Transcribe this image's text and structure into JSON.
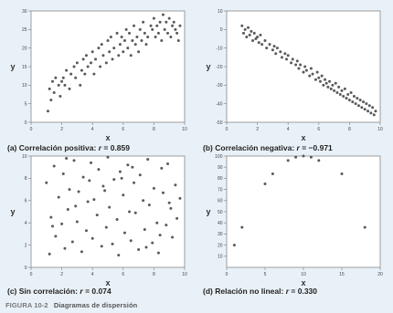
{
  "figure": {
    "number": "FIGURA 10-2",
    "title": "Diagramas de dispersión"
  },
  "panels": [
    {
      "letter": "(a)",
      "label": "Correlación positiva:",
      "r_symbol": "r",
      "r_value": "= 0.859"
    },
    {
      "letter": "(b)",
      "label": "Correlación negativa:",
      "r_symbol": "r",
      "r_value": "= −0.971"
    },
    {
      "letter": "(c)",
      "label": "Sin correlación:",
      "r_symbol": "r",
      "r_value": "= 0.074"
    },
    {
      "letter": "(d)",
      "label": "Relación no lineal:",
      "r_symbol": "r",
      "r_value": "= 0.330"
    }
  ],
  "colors": {
    "point": "#5a5a5a",
    "axis": "#888888",
    "background": "#e9f1f8",
    "plot_bg": "#ffffff"
  },
  "chart_data": [
    {
      "type": "scatter",
      "title": "(a) Correlación positiva: r = 0.859",
      "xlabel": "x",
      "ylabel": "y",
      "xlim": [
        0,
        10
      ],
      "ylim": [
        0,
        30
      ],
      "xticks": [
        0,
        2,
        4,
        6,
        8,
        10
      ],
      "yticks": [
        0,
        5,
        10,
        15,
        20,
        25,
        30
      ],
      "x": [
        1.1,
        1.2,
        1.3,
        1.4,
        1.5,
        1.6,
        1.8,
        1.9,
        2.0,
        2.1,
        2.2,
        2.3,
        2.5,
        2.6,
        2.8,
        2.9,
        3.0,
        3.2,
        3.3,
        3.4,
        3.5,
        3.6,
        3.7,
        3.9,
        4.0,
        4.1,
        4.2,
        4.4,
        4.5,
        4.6,
        4.7,
        4.9,
        5.0,
        5.1,
        5.2,
        5.3,
        5.4,
        5.6,
        5.7,
        5.8,
        5.9,
        6.0,
        6.1,
        6.2,
        6.3,
        6.4,
        6.5,
        6.6,
        6.7,
        6.8,
        6.9,
        7.0,
        7.1,
        7.2,
        7.3,
        7.4,
        7.5,
        7.6,
        7.8,
        7.9,
        8.0,
        8.1,
        8.2,
        8.3,
        8.4,
        8.5,
        8.6,
        8.7,
        8.8,
        8.9,
        9.0,
        9.1,
        9.2,
        9.3,
        9.4,
        9.5,
        9.6,
        9.7
      ],
      "y": [
        3,
        9,
        6,
        11,
        8,
        12,
        10,
        7,
        11,
        12,
        10,
        14,
        9,
        13,
        15,
        12,
        16,
        10,
        14,
        17,
        13,
        18,
        15,
        16,
        19,
        13,
        17,
        20,
        15,
        21,
        18,
        16,
        22,
        19,
        23,
        17,
        20,
        24,
        18,
        21,
        23,
        19,
        22,
        25,
        20,
        24,
        18,
        22,
        26,
        21,
        23,
        19,
        25,
        22,
        27,
        24,
        21,
        23,
        26,
        25,
        28,
        23,
        26,
        24,
        27,
        22,
        29,
        25,
        27,
        24,
        28,
        23,
        26,
        27,
        25,
        24,
        22,
        26
      ]
    },
    {
      "type": "scatter",
      "title": "(b) Correlación negativa: r = −0.971",
      "xlabel": "x",
      "ylabel": "y",
      "xlim": [
        0,
        10
      ],
      "ylim": [
        -50,
        10
      ],
      "xticks": [
        0,
        2,
        4,
        6,
        8,
        10
      ],
      "yticks": [
        10,
        0,
        -10,
        -20,
        -30,
        -40,
        -50
      ],
      "x": [
        1.0,
        1.1,
        1.2,
        1.3,
        1.4,
        1.5,
        1.6,
        1.7,
        1.8,
        1.9,
        2.0,
        2.1,
        2.2,
        2.3,
        2.5,
        2.6,
        2.8,
        3.0,
        3.1,
        3.2,
        3.3,
        3.5,
        3.6,
        3.8,
        3.9,
        4.0,
        4.2,
        4.3,
        4.5,
        4.6,
        4.7,
        4.8,
        5.0,
        5.1,
        5.2,
        5.4,
        5.5,
        5.6,
        5.8,
        5.9,
        6.0,
        6.1,
        6.2,
        6.3,
        6.4,
        6.5,
        6.6,
        6.7,
        6.8,
        6.9,
        7.0,
        7.1,
        7.2,
        7.3,
        7.4,
        7.5,
        7.6,
        7.7,
        7.8,
        7.9,
        8.0,
        8.1,
        8.2,
        8.3,
        8.4,
        8.5,
        8.6,
        8.7,
        8.8,
        8.9,
        9.0,
        9.1,
        9.2,
        9.3,
        9.4,
        9.5,
        9.6,
        9.7
      ],
      "y": [
        2,
        -2,
        0,
        -4,
        1,
        -3,
        -1,
        -6,
        -2,
        -5,
        -4,
        -7,
        -3,
        -8,
        -6,
        -10,
        -8,
        -11,
        -9,
        -13,
        -10,
        -12,
        -15,
        -13,
        -16,
        -14,
        -18,
        -16,
        -19,
        -17,
        -21,
        -19,
        -23,
        -20,
        -22,
        -25,
        -21,
        -24,
        -27,
        -23,
        -26,
        -28,
        -25,
        -30,
        -27,
        -29,
        -31,
        -28,
        -32,
        -30,
        -33,
        -29,
        -34,
        -31,
        -35,
        -33,
        -36,
        -32,
        -37,
        -35,
        -38,
        -34,
        -39,
        -36,
        -40,
        -37,
        -41,
        -38,
        -42,
        -39,
        -43,
        -40,
        -44,
        -41,
        -45,
        -42,
        -46,
        -44
      ]
    },
    {
      "type": "scatter",
      "title": "(c) Sin correlación: r = 0.074",
      "xlabel": "x",
      "ylabel": "y",
      "xlim": [
        0,
        10
      ],
      "ylim": [
        0,
        10
      ],
      "xticks": [
        0,
        2,
        4,
        6,
        8,
        10
      ],
      "yticks": [
        0,
        2,
        4,
        6,
        8,
        10
      ],
      "x": [
        1.0,
        1.2,
        1.3,
        1.5,
        1.6,
        1.8,
        2.0,
        2.1,
        2.2,
        2.4,
        2.5,
        2.7,
        2.8,
        3.0,
        3.1,
        3.3,
        3.4,
        3.6,
        3.7,
        3.9,
        4.0,
        4.1,
        4.3,
        4.4,
        4.6,
        4.7,
        4.9,
        5.0,
        5.1,
        5.3,
        5.4,
        5.6,
        5.7,
        5.8,
        6.0,
        6.1,
        6.3,
        6.4,
        6.5,
        6.7,
        6.8,
        7.0,
        7.1,
        7.3,
        7.4,
        7.6,
        7.7,
        7.9,
        8.0,
        8.2,
        8.3,
        8.5,
        8.6,
        8.8,
        8.9,
        9.1,
        9.2,
        9.4,
        9.5,
        9.7,
        1.4,
        2.9,
        4.8,
        6.6,
        8.4,
        3.8,
        5.9,
        7.5,
        9.0,
        2.3
      ],
      "y": [
        7.6,
        1.2,
        4.5,
        9.1,
        2.8,
        6.3,
        3.9,
        8.4,
        1.7,
        5.2,
        7.0,
        2.3,
        9.6,
        4.1,
        6.8,
        1.4,
        8.1,
        3.3,
        5.9,
        9.4,
        2.6,
        6.1,
        4.7,
        8.8,
        1.9,
        7.3,
        3.6,
        9.9,
        5.4,
        2.1,
        7.9,
        4.3,
        1.1,
        8.6,
        6.5,
        3.1,
        9.2,
        5.0,
        2.4,
        7.6,
        4.9,
        1.6,
        8.3,
        6.0,
        3.4,
        9.7,
        5.6,
        2.2,
        7.1,
        4.0,
        1.3,
        8.9,
        6.7,
        3.8,
        9.3,
        5.3,
        2.7,
        7.4,
        4.4,
        6.2,
        3.7,
        5.5,
        6.9,
        9.0,
        2.9,
        7.8,
        8.0,
        1.8,
        5.8,
        9.8
      ]
    },
    {
      "type": "scatter",
      "title": "(d) Relación no lineal: r = 0.330",
      "xlabel": "x",
      "ylabel": "y",
      "xlim": [
        0,
        20
      ],
      "ylim": [
        0,
        100
      ],
      "xticks": [
        0,
        5,
        10,
        15,
        20
      ],
      "yticks": [
        10,
        20,
        30,
        40,
        50,
        60,
        70,
        80,
        90,
        100
      ],
      "x": [
        1,
        2,
        5,
        6,
        8,
        9,
        10,
        11,
        12,
        15,
        18
      ],
      "y": [
        20,
        36,
        75,
        84,
        96,
        99,
        100,
        99,
        96,
        84,
        36
      ]
    }
  ]
}
